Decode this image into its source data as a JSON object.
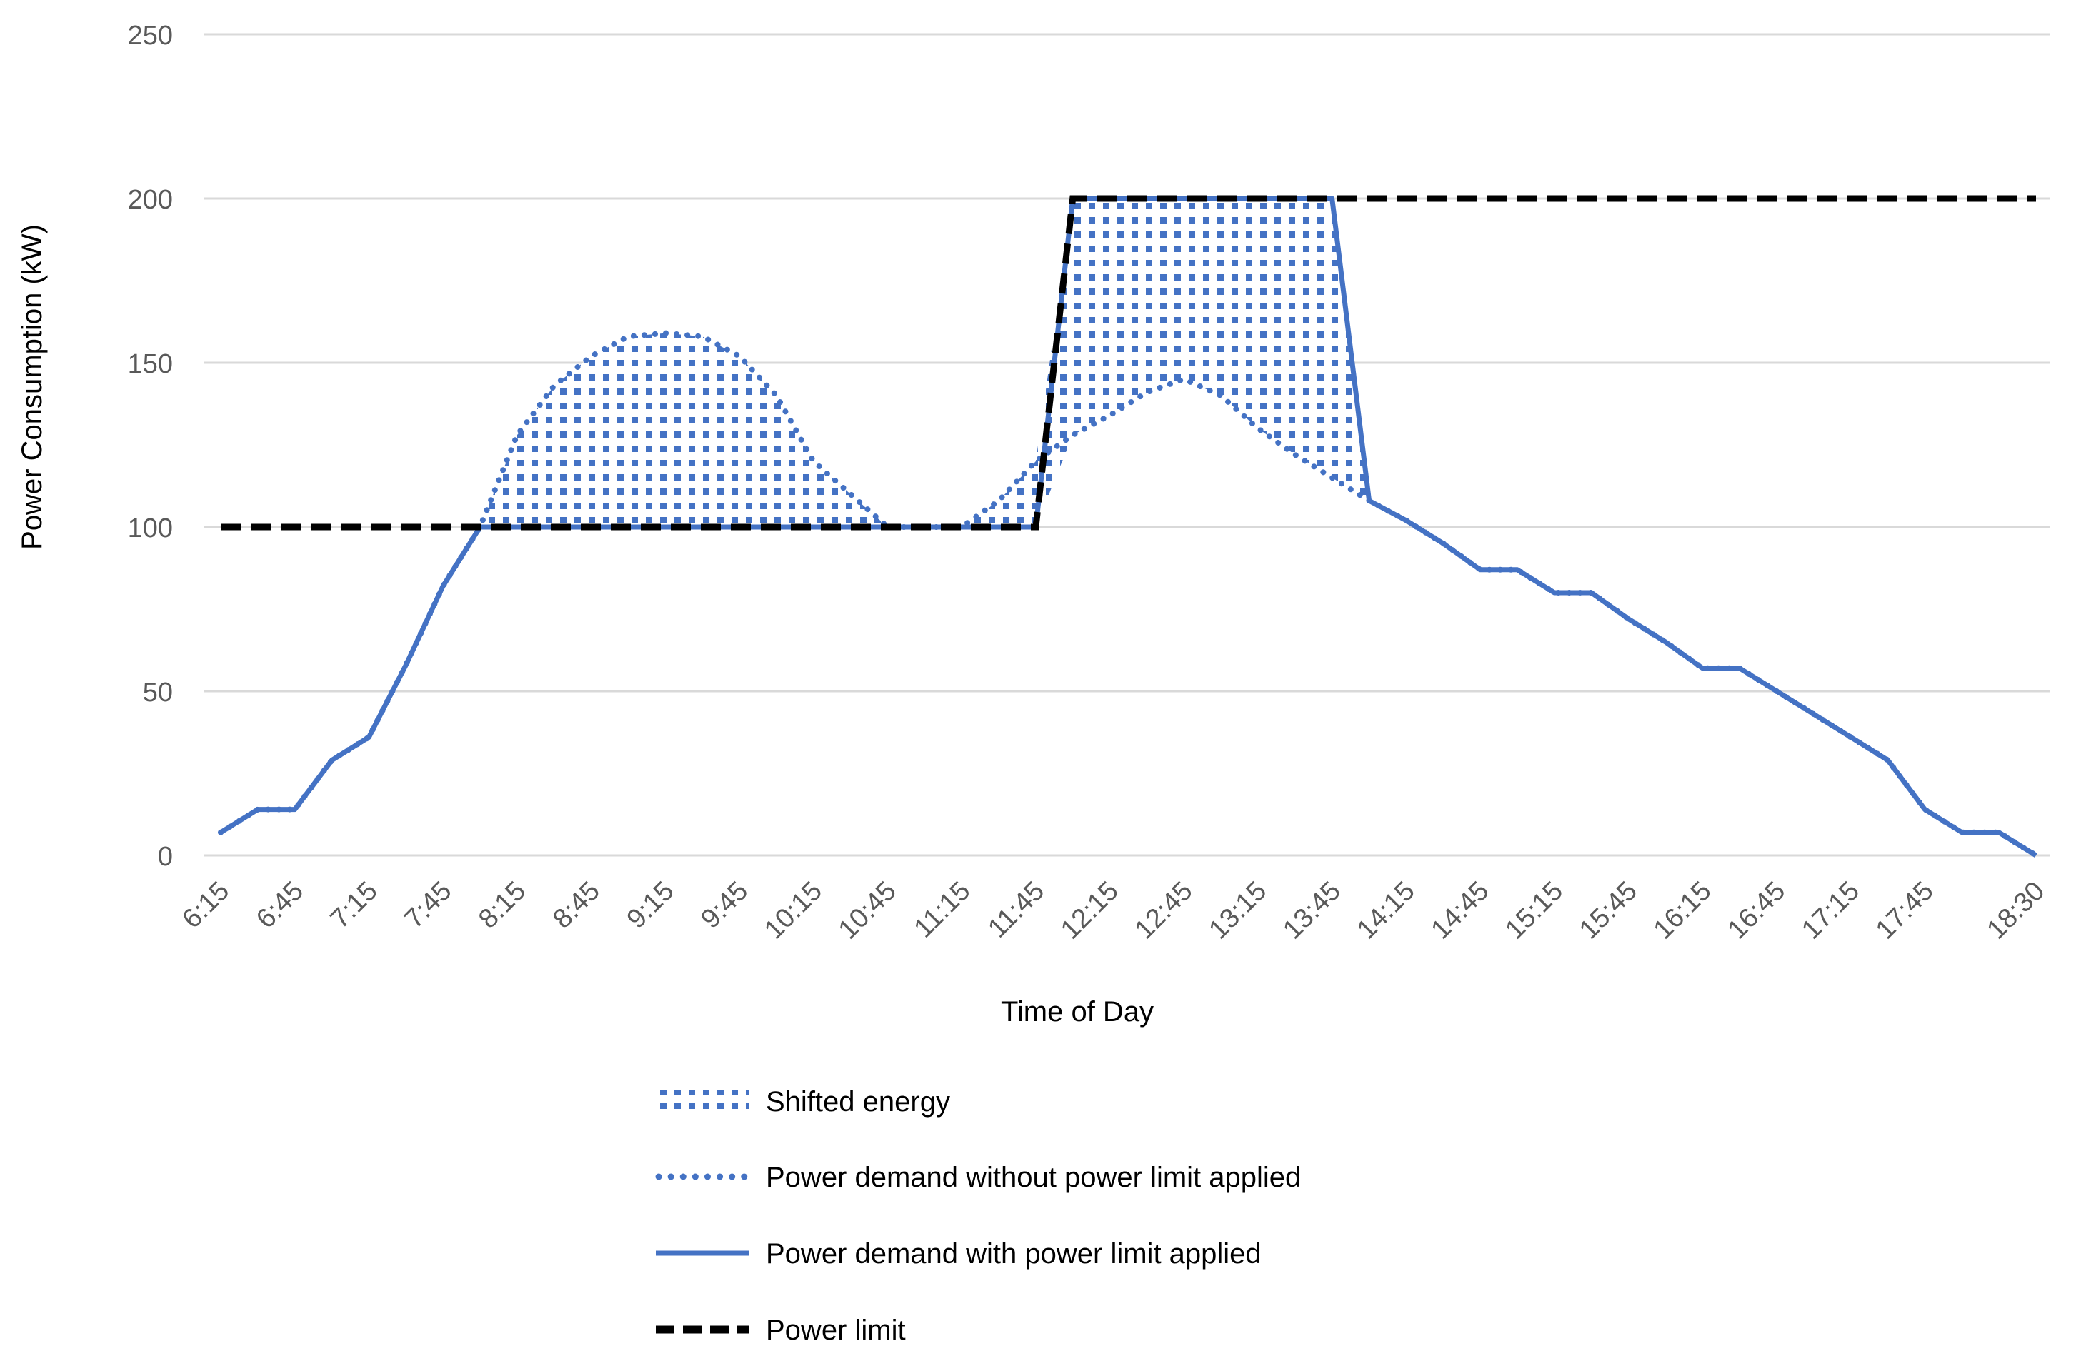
{
  "chart_data": {
    "type": "line",
    "ylabel": "Power Consumption (kW)",
    "xlabel": "Time of Day",
    "ylim": [
      0,
      250
    ],
    "y_ticks": [
      0,
      50,
      100,
      150,
      200,
      250
    ],
    "x_tick_labels": [
      "6:15",
      "6:45",
      "7:15",
      "7:45",
      "8:15",
      "8:45",
      "9:15",
      "9:45",
      "10:15",
      "10:45",
      "11:15",
      "11:45",
      "12:15",
      "12:45",
      "13:15",
      "13:45",
      "14:15",
      "14:45",
      "15:15",
      "15:45",
      "16:15",
      "16:45",
      "17:15",
      "17:45",
      "18:30"
    ],
    "grid": "horizontal",
    "legend_position": "bottom",
    "series": [
      {
        "name": "Power demand without power limit applied",
        "style": "dotted",
        "color": "#4472C4",
        "points": [
          [
            "6:15",
            7
          ],
          [
            "6:30",
            14
          ],
          [
            "6:45",
            14
          ],
          [
            "7:00",
            29
          ],
          [
            "7:15",
            36
          ],
          [
            "7:30",
            58
          ],
          [
            "7:45",
            82
          ],
          [
            "8:00",
            100
          ],
          [
            "8:15",
            128
          ],
          [
            "8:30",
            143
          ],
          [
            "8:45",
            152
          ],
          [
            "9:00",
            158
          ],
          [
            "9:15",
            159
          ],
          [
            "9:30",
            158
          ],
          [
            "9:45",
            152
          ],
          [
            "10:00",
            140
          ],
          [
            "10:15",
            120
          ],
          [
            "10:30",
            110
          ],
          [
            "10:45",
            100
          ],
          [
            "11:00",
            100
          ],
          [
            "11:15",
            100
          ],
          [
            "11:30",
            108
          ],
          [
            "11:45",
            120
          ],
          [
            "12:00",
            128
          ],
          [
            "12:15",
            134
          ],
          [
            "12:30",
            141
          ],
          [
            "12:45",
            145
          ],
          [
            "13:00",
            140
          ],
          [
            "13:15",
            130
          ],
          [
            "13:30",
            122
          ],
          [
            "13:45",
            115
          ],
          [
            "14:00",
            108
          ],
          [
            "14:15",
            102
          ],
          [
            "14:30",
            95
          ],
          [
            "14:45",
            87
          ],
          [
            "15:00",
            87
          ],
          [
            "15:15",
            80
          ],
          [
            "15:30",
            80
          ],
          [
            "15:45",
            72
          ],
          [
            "16:00",
            65
          ],
          [
            "16:15",
            57
          ],
          [
            "16:30",
            57
          ],
          [
            "16:45",
            50
          ],
          [
            "17:00",
            43
          ],
          [
            "17:15",
            36
          ],
          [
            "17:30",
            29
          ],
          [
            "17:45",
            14
          ],
          [
            "18:00",
            7
          ],
          [
            "18:15",
            7
          ],
          [
            "18:30",
            0
          ]
        ]
      },
      {
        "name": "Power demand with power limit applied",
        "style": "solid",
        "color": "#4472C4",
        "points": [
          [
            "6:15",
            7
          ],
          [
            "6:30",
            14
          ],
          [
            "6:45",
            14
          ],
          [
            "7:00",
            29
          ],
          [
            "7:15",
            36
          ],
          [
            "7:30",
            58
          ],
          [
            "7:45",
            82
          ],
          [
            "8:00",
            100
          ],
          [
            "8:15",
            100
          ],
          [
            "8:30",
            100
          ],
          [
            "8:45",
            100
          ],
          [
            "9:00",
            100
          ],
          [
            "9:15",
            100
          ],
          [
            "9:30",
            100
          ],
          [
            "9:45",
            100
          ],
          [
            "10:00",
            100
          ],
          [
            "10:15",
            100
          ],
          [
            "10:30",
            100
          ],
          [
            "10:45",
            100
          ],
          [
            "11:00",
            100
          ],
          [
            "11:15",
            100
          ],
          [
            "11:30",
            100
          ],
          [
            "11:45",
            100
          ],
          [
            "12:00",
            200
          ],
          [
            "12:15",
            200
          ],
          [
            "12:30",
            200
          ],
          [
            "12:45",
            200
          ],
          [
            "13:00",
            200
          ],
          [
            "13:15",
            200
          ],
          [
            "13:30",
            200
          ],
          [
            "13:45",
            200
          ],
          [
            "14:00",
            108
          ],
          [
            "14:15",
            102
          ],
          [
            "14:30",
            95
          ],
          [
            "14:45",
            87
          ],
          [
            "15:00",
            87
          ],
          [
            "15:15",
            80
          ],
          [
            "15:30",
            80
          ],
          [
            "15:45",
            72
          ],
          [
            "16:00",
            65
          ],
          [
            "16:15",
            57
          ],
          [
            "16:30",
            57
          ],
          [
            "16:45",
            50
          ],
          [
            "17:00",
            43
          ],
          [
            "17:15",
            36
          ],
          [
            "17:30",
            29
          ],
          [
            "17:45",
            14
          ],
          [
            "18:00",
            7
          ],
          [
            "18:15",
            7
          ],
          [
            "18:30",
            0
          ]
        ]
      },
      {
        "name": "Power limit",
        "style": "dashed",
        "color": "#000000",
        "points": [
          [
            "6:15",
            100
          ],
          [
            "11:45",
            100
          ],
          [
            "12:00",
            200
          ],
          [
            "18:30",
            200
          ]
        ]
      }
    ],
    "shaded_area": {
      "name": "Shifted energy",
      "pattern": "dotted-blue",
      "color": "#4472C4",
      "description_between": [
        "Power demand without power limit applied",
        "Power demand with power limit applied"
      ]
    },
    "legend": [
      {
        "label": "Shifted energy",
        "kind": "pattern"
      },
      {
        "label": "Power demand without power limit applied",
        "kind": "dotted"
      },
      {
        "label": "Power demand with power limit applied",
        "kind": "solid"
      },
      {
        "label": "Power limit",
        "kind": "dashed"
      }
    ]
  }
}
